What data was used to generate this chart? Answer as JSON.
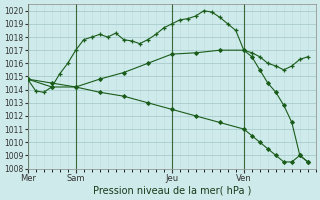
{
  "title": "Pression niveau de la mer( hPa )",
  "background_color": "#ceeaea",
  "grid_color_major": "#a8cccc",
  "grid_color_minor": "#bcdede",
  "line_color": "#1a5c1a",
  "ylim": [
    1008,
    1020.5
  ],
  "yticks": [
    1008,
    1009,
    1010,
    1011,
    1012,
    1013,
    1014,
    1015,
    1016,
    1017,
    1018,
    1019,
    1020
  ],
  "day_labels": [
    "Mer",
    "Sam",
    "Jeu",
    "Ven"
  ],
  "day_positions": [
    0,
    6,
    18,
    27
  ],
  "vline_positions": [
    0,
    6,
    18,
    27
  ],
  "xlim": [
    0,
    36
  ],
  "series1_x": [
    0,
    1,
    2,
    3,
    4,
    5,
    6,
    7,
    8,
    9,
    10,
    11,
    12,
    13,
    14,
    15,
    16,
    17,
    18,
    19,
    20,
    21,
    22,
    23,
    24,
    25,
    26,
    27,
    28,
    29,
    30,
    31,
    32,
    33,
    34,
    35
  ],
  "series1_y": [
    1014.8,
    1013.9,
    1013.8,
    1014.2,
    1015.2,
    1016.0,
    1017.0,
    1017.8,
    1018.0,
    1018.2,
    1018.0,
    1018.3,
    1017.8,
    1017.7,
    1017.5,
    1017.8,
    1018.2,
    1018.7,
    1019.0,
    1019.3,
    1019.4,
    1019.6,
    1020.0,
    1019.9,
    1019.5,
    1019.0,
    1018.5,
    1017.0,
    1016.8,
    1016.5,
    1016.0,
    1015.8,
    1015.5,
    1015.8,
    1016.3,
    1016.5
  ],
  "series2_x": [
    0,
    3,
    6,
    9,
    12,
    15,
    18,
    21,
    24,
    27,
    28,
    29,
    30,
    31,
    32,
    33,
    34,
    35
  ],
  "series2_y": [
    1014.8,
    1014.5,
    1014.2,
    1014.8,
    1015.3,
    1016.0,
    1016.7,
    1016.8,
    1017.0,
    1017.0,
    1016.5,
    1015.5,
    1014.5,
    1013.8,
    1012.8,
    1011.5,
    1009.0,
    1008.5
  ],
  "series3_x": [
    0,
    3,
    6,
    9,
    12,
    15,
    18,
    21,
    24,
    27,
    28,
    29,
    30,
    31,
    32,
    33,
    34,
    35
  ],
  "series3_y": [
    1014.8,
    1014.2,
    1014.2,
    1013.8,
    1013.5,
    1013.0,
    1012.5,
    1012.0,
    1011.5,
    1011.0,
    1010.5,
    1010.0,
    1009.5,
    1009.0,
    1008.5,
    1008.5,
    1009.0,
    1008.5
  ]
}
